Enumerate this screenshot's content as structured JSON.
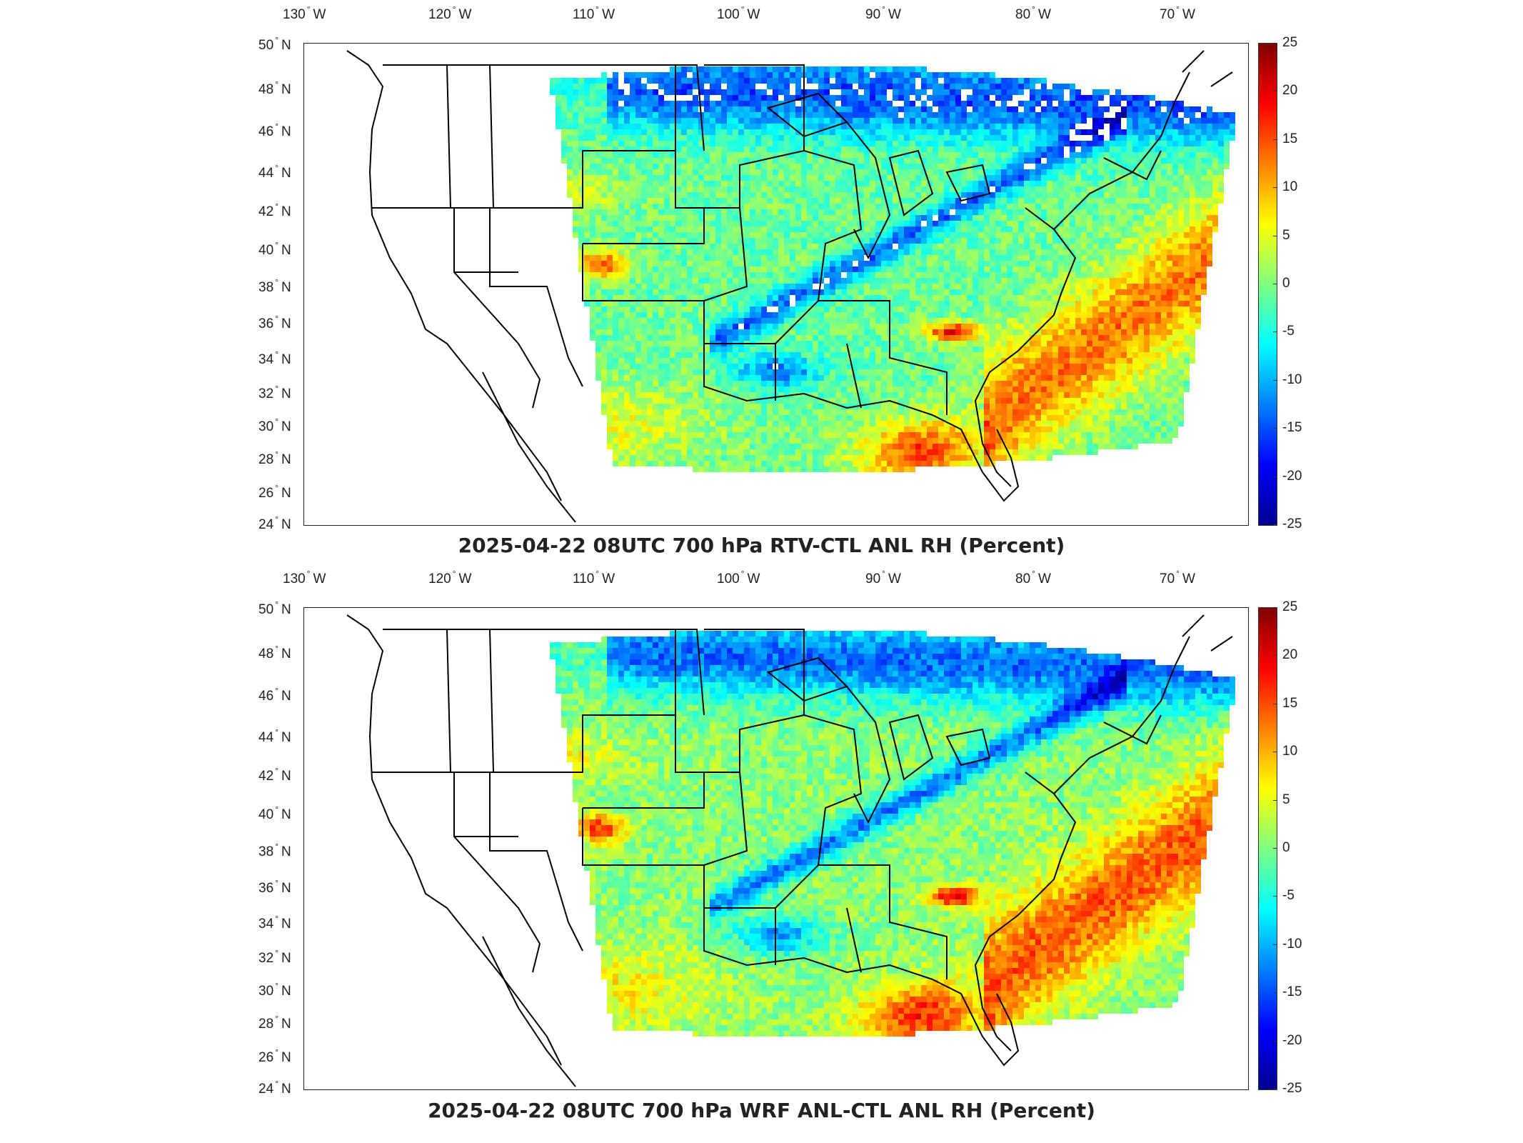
{
  "panels": [
    {
      "id": "top",
      "title": "2025-04-22 08UTC 700 hPa RTV-CTL ANL RH (Percent)",
      "colorbar": {
        "ticks": [
          "25",
          "20",
          "15",
          "10",
          "5",
          "0",
          "-5",
          "-10",
          "-15",
          "-20",
          "-25"
        ]
      }
    },
    {
      "id": "bottom",
      "title": "2025-04-22 08UTC 700 hPa WRF ANL-CTL ANL RH (Percent)",
      "colorbar": {
        "ticks": [
          "25",
          "20",
          "15",
          "10",
          "5",
          "0",
          "-5",
          "-10",
          "-15",
          "-20",
          "-25"
        ]
      }
    }
  ],
  "lon_labels": [
    {
      "v": "130",
      "h": "W"
    },
    {
      "v": "120",
      "h": "W"
    },
    {
      "v": "110",
      "h": "W"
    },
    {
      "v": "100",
      "h": "W"
    },
    {
      "v": "90",
      "h": "W"
    },
    {
      "v": "80",
      "h": "W"
    },
    {
      "v": "70",
      "h": "W"
    }
  ],
  "lat_labels": [
    {
      "v": "50",
      "h": "N"
    },
    {
      "v": "48",
      "h": "N"
    },
    {
      "v": "46",
      "h": "N"
    },
    {
      "v": "44",
      "h": "N"
    },
    {
      "v": "42",
      "h": "N"
    },
    {
      "v": "40",
      "h": "N"
    },
    {
      "v": "38",
      "h": "N"
    },
    {
      "v": "36",
      "h": "N"
    },
    {
      "v": "34",
      "h": "N"
    },
    {
      "v": "32",
      "h": "N"
    },
    {
      "v": "30",
      "h": "N"
    },
    {
      "v": "28",
      "h": "N"
    },
    {
      "v": "26",
      "h": "N"
    },
    {
      "v": "24",
      "h": "N"
    }
  ],
  "colors": {
    "colormap": [
      "#00008f",
      "#0000ff",
      "#0080ff",
      "#00ffff",
      "#80ff80",
      "#ffff00",
      "#ff8000",
      "#ff0000",
      "#800000"
    ],
    "land_outline": "#000000"
  }
}
